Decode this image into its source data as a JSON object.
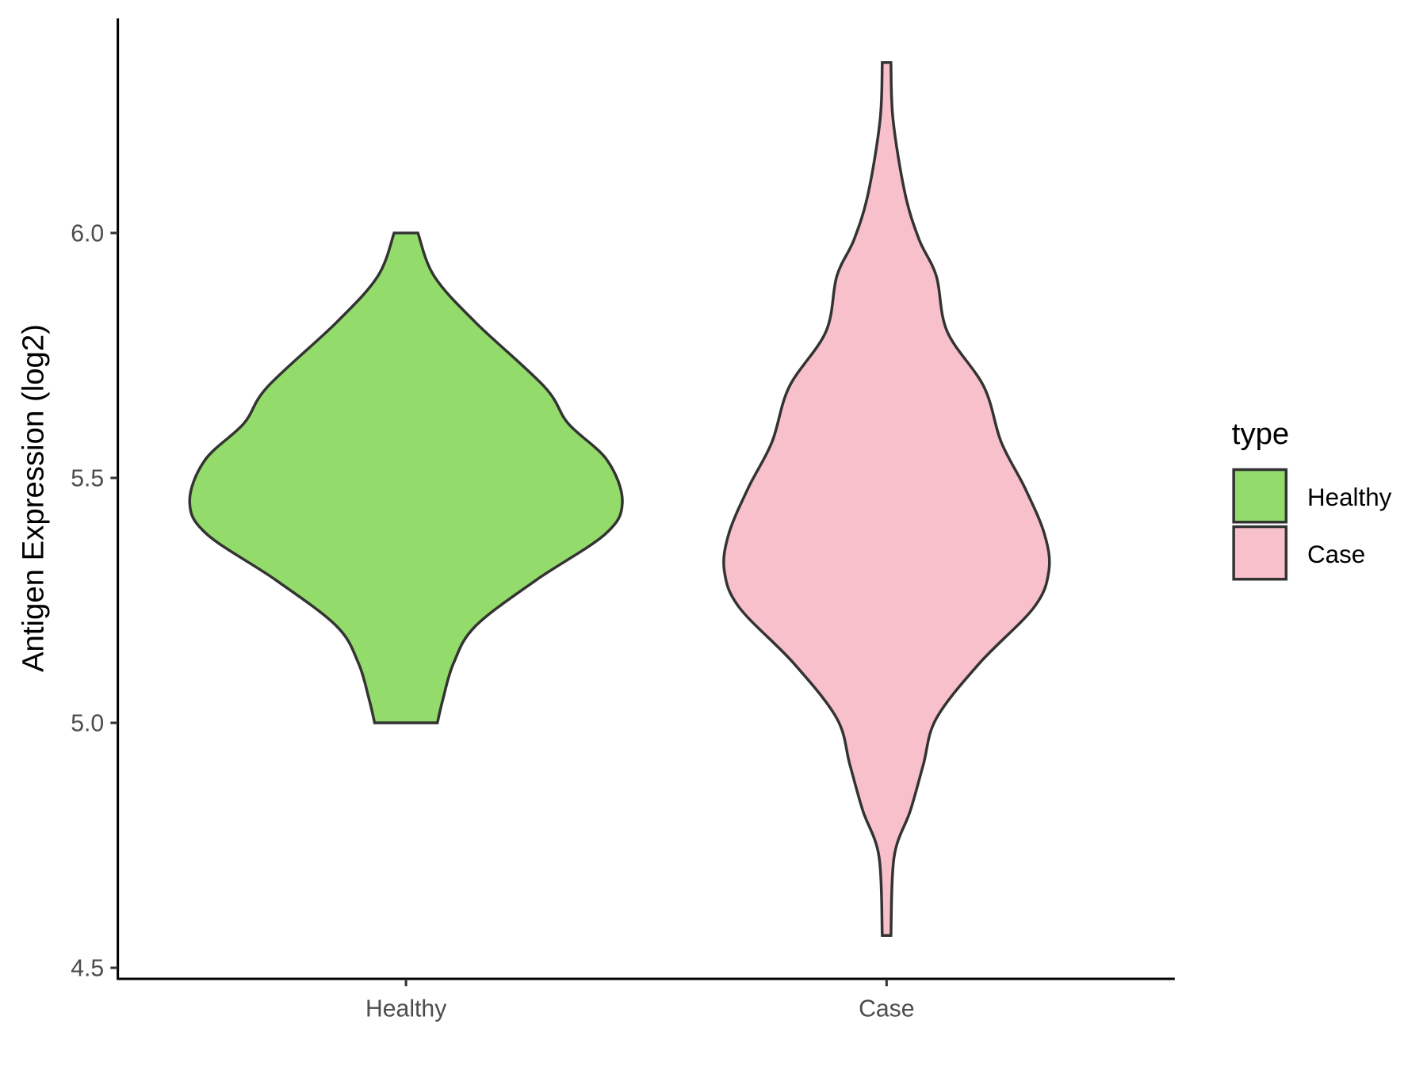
{
  "chart_data": {
    "type": "violin",
    "title": "",
    "xlabel": "",
    "ylabel": "Antigen Expression (log2)",
    "ylim": [
      4.5,
      6.4
    ],
    "yticks": [
      "4.5",
      "5.0",
      "5.5",
      "6.0"
    ],
    "ytick_values": [
      4.5,
      5.0,
      5.5,
      6.0
    ],
    "categories": [
      "Healthy",
      "Case"
    ],
    "legend": {
      "title": "type",
      "placement": "right",
      "entries": [
        "Healthy",
        "Case"
      ]
    },
    "colors": {
      "Healthy": "#93DB6A",
      "Case": "#F7C0CB",
      "outline": "#333333"
    },
    "series": [
      {
        "name": "Healthy",
        "y": [
          6.0,
          5.912,
          5.818,
          5.686,
          5.611,
          5.536,
          5.451,
          5.385,
          5.291,
          5.197,
          5.122,
          5.047,
          5.0
        ],
        "relative_width": [
          0.055,
          0.13,
          0.32,
          0.64,
          0.75,
          0.93,
          1.0,
          0.92,
          0.6,
          0.32,
          0.22,
          0.17,
          0.145
        ]
      },
      {
        "name": "Case",
        "y": [
          6.348,
          6.231,
          6.081,
          5.987,
          5.912,
          5.799,
          5.686,
          5.573,
          5.479,
          5.385,
          5.31,
          5.235,
          5.122,
          5.009,
          4.915,
          4.821,
          4.727,
          4.566
        ],
        "relative_width": [
          0.02,
          0.03,
          0.085,
          0.15,
          0.23,
          0.28,
          0.45,
          0.53,
          0.64,
          0.73,
          0.75,
          0.68,
          0.43,
          0.23,
          0.17,
          0.11,
          0.035,
          0.02
        ]
      }
    ]
  }
}
